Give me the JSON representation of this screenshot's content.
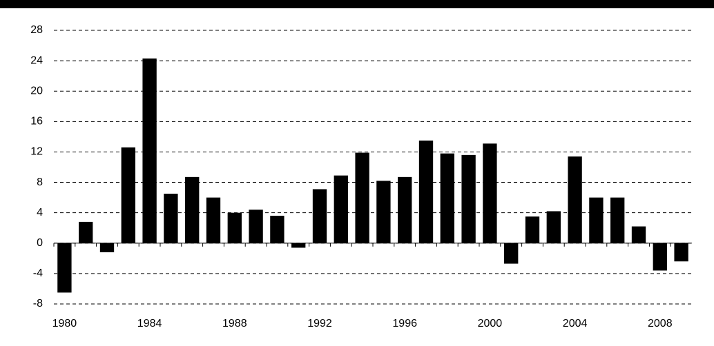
{
  "chart_data": {
    "type": "bar",
    "categories": [
      "1980",
      null,
      null,
      null,
      "1984",
      null,
      null,
      null,
      "1988",
      null,
      null,
      null,
      "1992",
      null,
      null,
      null,
      "1996",
      null,
      null,
      null,
      "2000",
      null,
      null,
      null,
      "2004",
      null,
      null,
      null,
      "2008",
      null
    ],
    "values": [
      -6.5,
      2.8,
      -1.2,
      12.6,
      24.3,
      6.5,
      8.7,
      6.0,
      4.0,
      4.4,
      3.6,
      -0.6,
      7.1,
      8.9,
      11.9,
      8.2,
      8.7,
      13.5,
      11.8,
      11.6,
      13.1,
      -2.7,
      3.5,
      4.2,
      11.4,
      6.0,
      6.0,
      2.2,
      -3.6,
      -2.4
    ],
    "color": "#000000",
    "ylim": [
      -8,
      28
    ],
    "yticks": [
      -8,
      -4,
      0,
      4,
      8,
      12,
      16,
      20,
      24,
      28
    ],
    "grid": true
  }
}
